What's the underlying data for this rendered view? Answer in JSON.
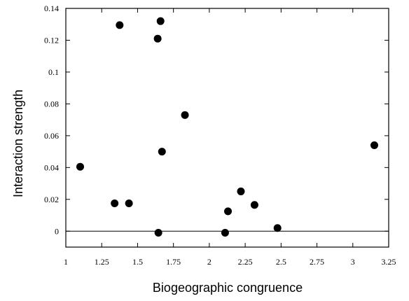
{
  "chart_data": {
    "type": "scatter",
    "title": "",
    "xlabel": "Biogeographic congruence",
    "ylabel": "Interaction strength",
    "xlim": [
      1,
      3.25
    ],
    "ylim": [
      -0.01,
      0.14
    ],
    "xticks": [
      1,
      1.25,
      1.5,
      1.75,
      2,
      2.25,
      2.5,
      2.75,
      3,
      3.25
    ],
    "xtick_labels": [
      "1",
      "1.25",
      "1.5",
      "1.75",
      "2",
      "2.25",
      "2.5",
      "2.75",
      "3",
      "3.25"
    ],
    "yticks": [
      0,
      0.02,
      0.04,
      0.06,
      0.08,
      0.1,
      0.12,
      0.14
    ],
    "ytick_labels": [
      "0",
      "0.02",
      "0.04",
      "0.06",
      "0.08",
      "0.1",
      "0.12",
      "0.14"
    ],
    "reference_line_y": 0,
    "grid": false,
    "points": [
      {
        "x": 1.1,
        "y": 0.0405
      },
      {
        "x": 1.34,
        "y": 0.0175
      },
      {
        "x": 1.375,
        "y": 0.1295
      },
      {
        "x": 1.44,
        "y": 0.0175
      },
      {
        "x": 1.64,
        "y": 0.121
      },
      {
        "x": 1.66,
        "y": 0.132
      },
      {
        "x": 1.645,
        "y": -0.001
      },
      {
        "x": 1.67,
        "y": 0.05
      },
      {
        "x": 1.83,
        "y": 0.073
      },
      {
        "x": 2.11,
        "y": -0.001
      },
      {
        "x": 2.13,
        "y": 0.0125
      },
      {
        "x": 2.22,
        "y": 0.025
      },
      {
        "x": 2.315,
        "y": 0.0165
      },
      {
        "x": 2.475,
        "y": 0.002
      },
      {
        "x": 3.15,
        "y": 0.054
      }
    ],
    "colors": {
      "marker": "#000000",
      "axis": "#000000",
      "background": "#ffffff"
    }
  }
}
